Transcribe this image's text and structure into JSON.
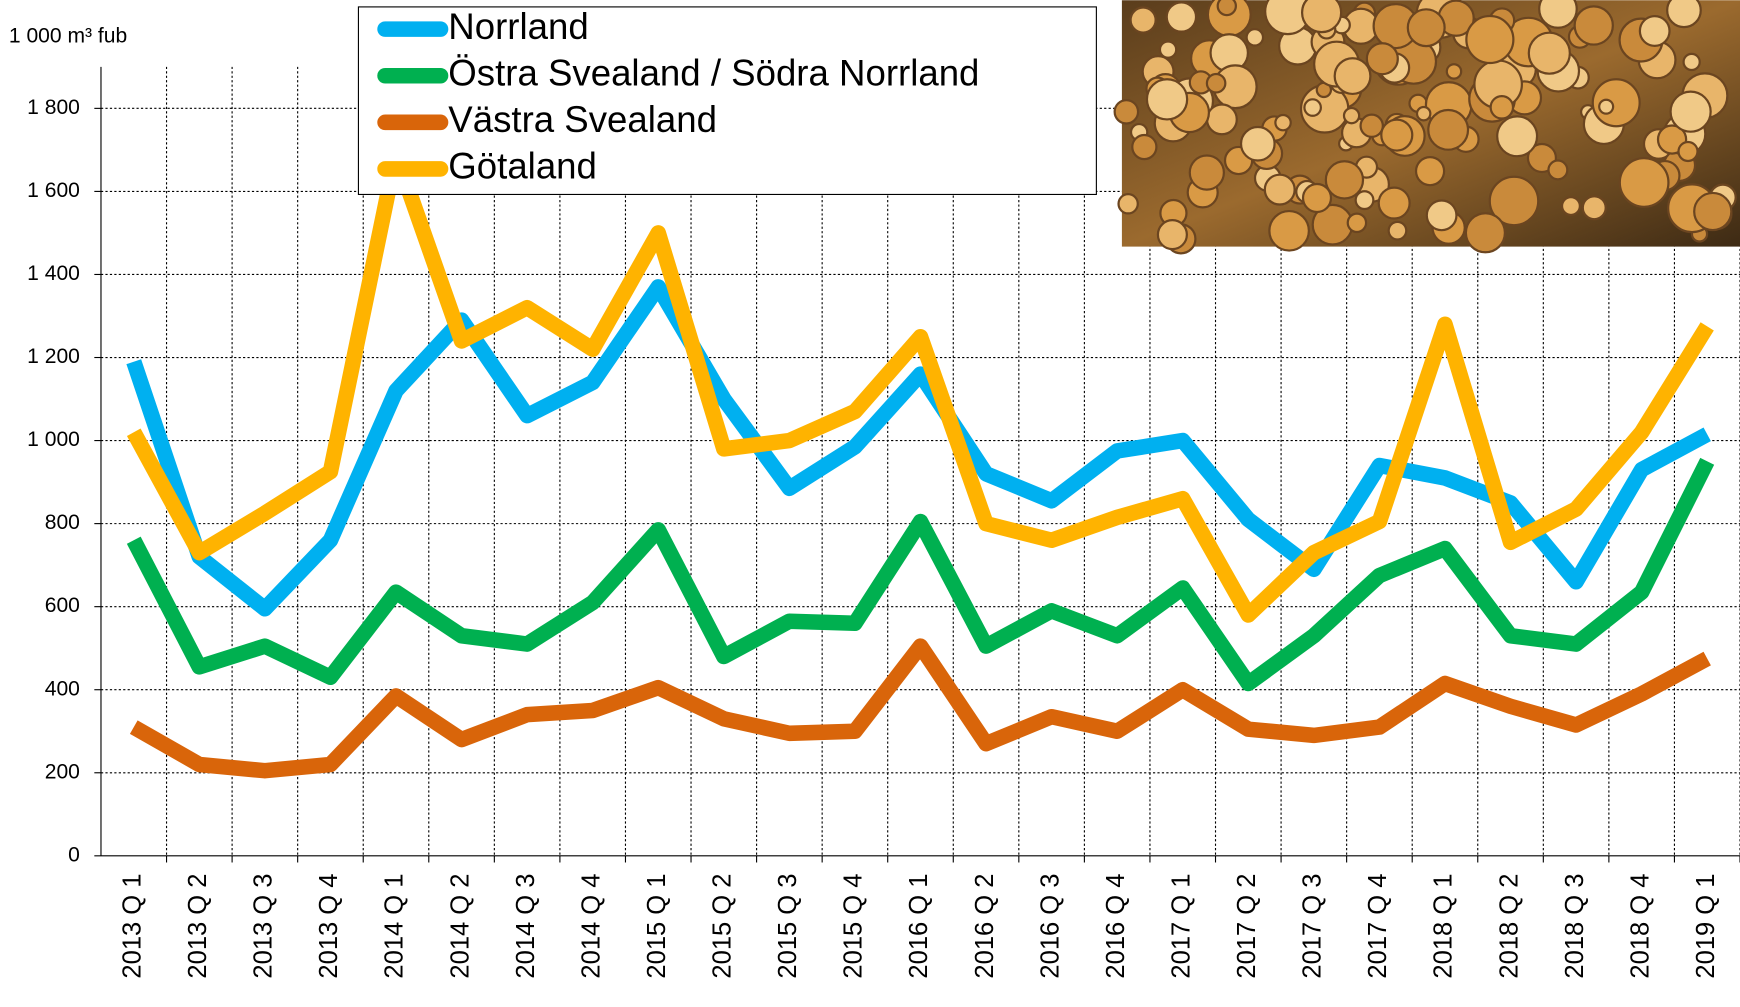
{
  "chart_data": {
    "type": "line",
    "y_axis_label": "1 000 m³ fub",
    "categories": [
      "2013 Q 1",
      "2013 Q 2",
      "2013 Q 3",
      "2013 Q 4",
      "2014 Q 1",
      "2014 Q 2",
      "2014 Q 3",
      "2014 Q 4",
      "2015 Q 1",
      "2015 Q 2",
      "2015 Q 3",
      "2015 Q 4",
      "2016 Q 1",
      "2016 Q 2",
      "2016 Q 3",
      "2016 Q 4",
      "2017 Q 1",
      "2017 Q 2",
      "2017 Q 3",
      "2017 Q 4",
      "2018 Q 1",
      "2018 Q 2",
      "2018 Q 3",
      "2018 Q 4",
      "2019 Q 1"
    ],
    "series": [
      {
        "name": "Norrland",
        "color": "#00b0f0",
        "values": [
          1190,
          720,
          595,
          760,
          1120,
          1290,
          1060,
          1140,
          1370,
          1100,
          885,
          985,
          1160,
          920,
          855,
          975,
          1000,
          810,
          690,
          940,
          910,
          850,
          660,
          930,
          1015
        ]
      },
      {
        "name": "Östra Svealand / Södra Norrland",
        "color": "#00b050",
        "values": [
          760,
          455,
          505,
          430,
          635,
          530,
          510,
          610,
          785,
          480,
          565,
          560,
          805,
          505,
          590,
          530,
          645,
          415,
          530,
          675,
          740,
          530,
          510,
          635,
          950
        ]
      },
      {
        "name": "Västra Svealand",
        "color": "#d9650a",
        "values": [
          310,
          220,
          205,
          220,
          385,
          280,
          340,
          350,
          405,
          330,
          295,
          300,
          505,
          270,
          335,
          300,
          400,
          305,
          290,
          310,
          415,
          360,
          315,
          390,
          475
        ]
      },
      {
        "name": "Götaland",
        "color": "#ffb300",
        "values": [
          1020,
          730,
          825,
          925,
          1690,
          1240,
          1320,
          1220,
          1500,
          980,
          1000,
          1070,
          1250,
          800,
          760,
          815,
          860,
          580,
          730,
          805,
          1280,
          755,
          835,
          1020,
          1275
        ]
      }
    ],
    "ylim": [
      0,
      1900
    ],
    "yticks": [
      0,
      200,
      400,
      600,
      800,
      {
        "value": 1000,
        "label": "1 000"
      },
      {
        "value": 1200,
        "label": "1 200"
      },
      {
        "value": 1400,
        "label": "1 400"
      },
      {
        "value": 1600,
        "label": "1 600"
      },
      {
        "value": 1800,
        "label": "1 800"
      }
    ],
    "grid": true
  }
}
